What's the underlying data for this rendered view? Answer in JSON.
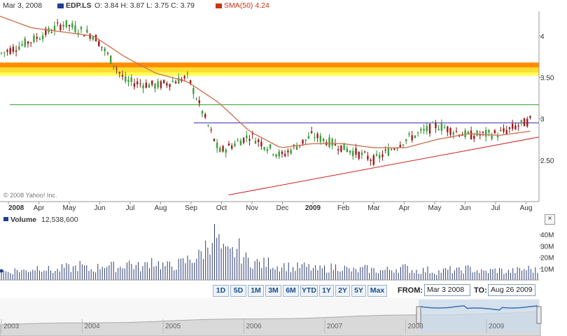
{
  "header": {
    "date": "Mar 3, 2008",
    "symbol": "EDP.LS",
    "ohlc": "O: 3.84 H: 3.87 L: 3.75 C: 3.79",
    "sma_label": "SMA(50)",
    "sma_value": "4.24",
    "symbol_color": "#1f3f8f",
    "sma_color": "#cc3311"
  },
  "watermark": "© 2008 Yahoo! Inc.",
  "volume": {
    "label": "Volume",
    "value": "12,538,600",
    "close_label": "×"
  },
  "range_buttons": [
    "1D",
    "5D",
    "1M",
    "3M",
    "6M",
    "YTD",
    "1Y",
    "2Y",
    "5Y",
    "Max"
  ],
  "from_label": "FROM:",
  "from_value": "Mar 3 2008",
  "to_label": "TO:",
  "to_value": "Aug 26 2009",
  "navigator_years": [
    "2003",
    "2004",
    "2005",
    "2006",
    "2007",
    "2008",
    "2009"
  ],
  "chart_data": {
    "type": "line",
    "price_yticks": [
      "4",
      "3.50",
      "3",
      "2.50"
    ],
    "price_ylim": [
      2.0,
      4.3
    ],
    "volume_yticks": [
      "40M",
      "30M",
      "20M",
      "10M"
    ],
    "volume_ylim": [
      0,
      48
    ],
    "xticks": [
      "2008",
      "Apr",
      "May",
      "Jun",
      "Jul",
      "Aug",
      "Sep",
      "Oct",
      "Nov",
      "Dec",
      "2009",
      "Feb",
      "Mar",
      "Apr",
      "May",
      "Jun",
      "Jul",
      "Aug"
    ],
    "series": [
      {
        "name": "EDP.LS",
        "x": [
          "2008-03",
          "2008-04",
          "2008-05",
          "2008-06",
          "2008-07",
          "2008-08",
          "2008-09",
          "2008-10",
          "2008-11",
          "2008-12",
          "2009-01",
          "2009-02",
          "2009-03",
          "2009-04",
          "2009-05",
          "2009-06",
          "2009-07",
          "2009-08"
        ],
        "values": [
          3.79,
          3.95,
          4.15,
          4.0,
          3.45,
          3.4,
          3.5,
          2.6,
          2.8,
          2.55,
          2.8,
          2.65,
          2.5,
          2.75,
          2.92,
          2.8,
          2.82,
          2.98
        ]
      },
      {
        "name": "SMA(50)",
        "x": [
          "2008-03",
          "2008-04",
          "2008-05",
          "2008-06",
          "2008-07",
          "2008-08",
          "2008-09",
          "2008-10",
          "2008-11",
          "2008-12",
          "2009-01",
          "2009-02",
          "2009-03",
          "2009-04",
          "2009-05",
          "2009-06",
          "2009-07",
          "2009-08"
        ],
        "values": [
          4.24,
          4.1,
          4.05,
          4.0,
          3.75,
          3.55,
          3.45,
          3.2,
          2.85,
          2.65,
          2.7,
          2.7,
          2.65,
          2.65,
          2.75,
          2.82,
          2.8,
          2.85
        ]
      }
    ],
    "volume_values": [
      8,
      7,
      9,
      8,
      10,
      12,
      9,
      8,
      11,
      10,
      13,
      9,
      10,
      14,
      12,
      11,
      16,
      12,
      11,
      18,
      14,
      12,
      13,
      15,
      19,
      20,
      30,
      44,
      24,
      22,
      28,
      18,
      16,
      14,
      15,
      12,
      13,
      10,
      12,
      11,
      9,
      10,
      11,
      12,
      9,
      8,
      10,
      9,
      8,
      9,
      10,
      11,
      9,
      8,
      9,
      7,
      8,
      9,
      8,
      10,
      9,
      7,
      8,
      9,
      7,
      8,
      9,
      10,
      8
    ],
    "bands": [
      {
        "from": 3.62,
        "to": 3.68,
        "color": "#ff8c00"
      },
      {
        "from": 3.56,
        "to": 3.62,
        "color": "#ffdd33"
      },
      {
        "from": 3.52,
        "to": 3.56,
        "color": "#ffff55"
      }
    ],
    "hlines": [
      {
        "y": 3.17,
        "color": "#2ca02c"
      },
      {
        "y": 2.95,
        "color": "#3a2bb0",
        "from": "2008-09"
      }
    ],
    "trendline": {
      "from": {
        "x": "2008-10",
        "y": 2.08
      },
      "to": {
        "x": "2009-08",
        "y": 2.78
      },
      "color": "#cc2222"
    }
  }
}
